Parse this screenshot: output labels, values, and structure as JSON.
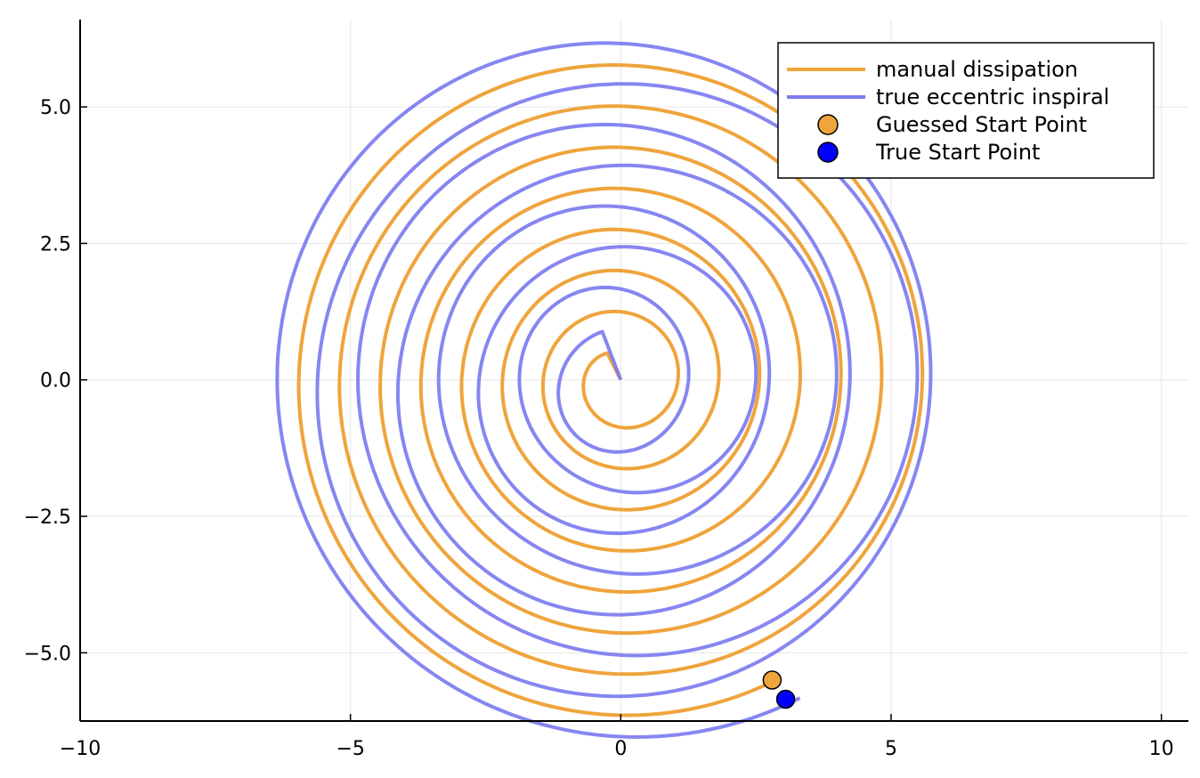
{
  "chart_data": {
    "type": "line",
    "title": "",
    "xlabel": "",
    "ylabel": "",
    "xlim": [
      -10,
      10.5
    ],
    "ylim": [
      -6.25,
      6.6
    ],
    "grid": true,
    "legend_position": "top-right",
    "x_ticks": [
      -10,
      -5,
      0,
      5,
      10
    ],
    "y_ticks": [
      -5.0,
      -2.5,
      0.0,
      2.5,
      5.0
    ],
    "x_tick_labels": [
      "−10",
      "−5",
      "0",
      "5",
      "10"
    ],
    "y_tick_labels": [
      "−5.0",
      "−2.5",
      "0.0",
      "2.5",
      "5.0"
    ],
    "colors": {
      "manual": "#efa43c",
      "true": "#7c7cf0",
      "guessed_marker": "#efa43c",
      "true_marker": "#0000ff"
    },
    "series": [
      {
        "name": "manual dissipation",
        "kind": "line",
        "spiral": {
          "start_angle_deg": -63,
          "turns": 7.5,
          "r_start": 6.2,
          "r_end": 0.55
        }
      },
      {
        "name": "true eccentric inspiral",
        "kind": "line",
        "spiral": {
          "start_angle_deg": -62,
          "turns": 7.5,
          "r_start": 6.6,
          "r_end": 1.0
        }
      },
      {
        "name": "Guessed Start Point",
        "kind": "scatter",
        "x": [
          2.8
        ],
        "y": [
          -5.5
        ]
      },
      {
        "name": "True Start Point",
        "kind": "scatter",
        "x": [
          3.05
        ],
        "y": [
          -5.85
        ]
      }
    ]
  }
}
